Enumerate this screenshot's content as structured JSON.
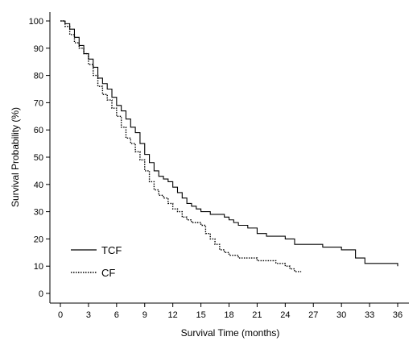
{
  "chart_data": {
    "type": "line",
    "subtype": "kaplan-meier step",
    "xlabel": "Survival Time (months)",
    "ylabel": "Survival Probability (%)",
    "xlim": [
      0,
      36
    ],
    "ylim": [
      0,
      100
    ],
    "x_ticks": [
      0,
      3,
      6,
      9,
      12,
      15,
      18,
      21,
      24,
      27,
      30,
      33,
      36
    ],
    "y_ticks": [
      0,
      10,
      20,
      30,
      40,
      50,
      60,
      70,
      80,
      90,
      100
    ],
    "grid": false,
    "legend_position": "bottom-left",
    "series": [
      {
        "name": "TCF",
        "line_style": "solid",
        "x": [
          0,
          0.5,
          1.0,
          1.5,
          2.0,
          2.5,
          3.0,
          3.5,
          4.0,
          4.5,
          5.0,
          5.5,
          6.0,
          6.5,
          7.0,
          7.5,
          8.0,
          8.5,
          9.0,
          9.5,
          10.0,
          10.5,
          11.0,
          11.5,
          12.0,
          12.5,
          13.0,
          13.5,
          14.0,
          14.5,
          15.0,
          16.0,
          17.0,
          17.5,
          18.0,
          18.5,
          19.0,
          20.0,
          21.0,
          22.0,
          24.0,
          25.0,
          27.0,
          28.0,
          30.0,
          30.5,
          31.0,
          31.5,
          32.5,
          36.0
        ],
        "y": [
          100,
          99,
          97,
          94,
          91,
          88,
          86,
          83,
          79,
          77,
          75,
          72,
          69,
          67,
          64,
          61,
          59,
          55,
          51,
          48,
          45,
          43,
          42,
          41,
          39,
          37,
          35,
          33,
          32,
          31,
          30,
          29,
          29,
          28,
          27,
          26,
          25,
          24,
          22,
          21,
          20,
          18,
          18,
          17,
          16,
          16,
          16,
          13,
          11,
          10
        ]
      },
      {
        "name": "CF",
        "line_style": "dotted",
        "x": [
          0,
          0.5,
          1.0,
          1.5,
          2.0,
          2.5,
          3.0,
          3.5,
          4.0,
          4.5,
          5.0,
          5.5,
          6.0,
          6.5,
          7.0,
          7.5,
          8.0,
          8.5,
          9.0,
          9.5,
          10.0,
          10.5,
          11.0,
          11.5,
          12.0,
          12.5,
          13.0,
          13.5,
          14.0,
          15.0,
          15.5,
          16.0,
          16.5,
          17.0,
          17.5,
          18.0,
          19.0,
          20.0,
          21.0,
          22.0,
          23.0,
          24.0,
          24.5,
          25.0,
          25.7
        ],
        "y": [
          100,
          98,
          95,
          92,
          90,
          88,
          84,
          80,
          76,
          73,
          71,
          68,
          65,
          61,
          57,
          55,
          52,
          49,
          45,
          41,
          38,
          36,
          35,
          33,
          31,
          30,
          28,
          27,
          26,
          25,
          22,
          20,
          18,
          16,
          15,
          14,
          13,
          13,
          12,
          12,
          11,
          10,
          9,
          8,
          8
        ]
      }
    ]
  }
}
